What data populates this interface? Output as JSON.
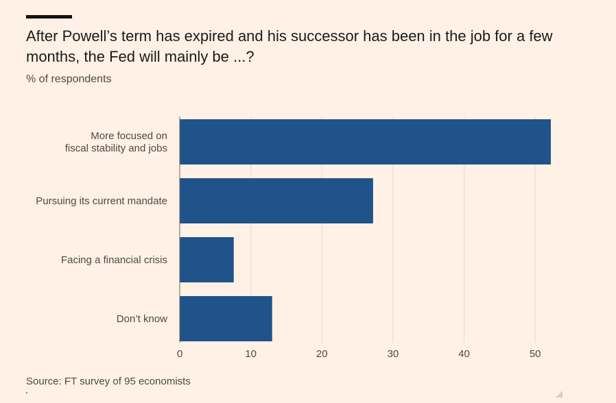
{
  "header": {
    "title": "After Powell’s term has expired and his successor has been in the job for a few months, the Fed will mainly be ...?",
    "subtitle": "% of respondents"
  },
  "footer": {
    "source": "Source: FT survey of 95 economists"
  },
  "colors": {
    "background": "#FFF1E5",
    "bar": "#1F538A",
    "grid": "#E6D9CE",
    "text": "#1a1a1a",
    "muted": "#4d4845"
  },
  "chart_data": {
    "type": "bar",
    "orientation": "horizontal",
    "title": "After Powell’s term has expired and his successor has been in the job for a few months, the Fed will mainly be ...?",
    "subtitle": "% of respondents",
    "categories": [
      [
        "More focused on",
        "fiscal stability and jobs"
      ],
      [
        "Pursuing its current mandate"
      ],
      [
        "Facing a financial crisis"
      ],
      [
        "Don’t know"
      ]
    ],
    "values": [
      52.2,
      27.2,
      7.6,
      13.0
    ],
    "xlim": [
      0,
      55
    ],
    "xticks": [
      "0",
      "10",
      "20",
      "30",
      "40",
      "50"
    ],
    "xtick_values": [
      0,
      10,
      20,
      30,
      40,
      50
    ],
    "grid": true,
    "legend": "none"
  }
}
